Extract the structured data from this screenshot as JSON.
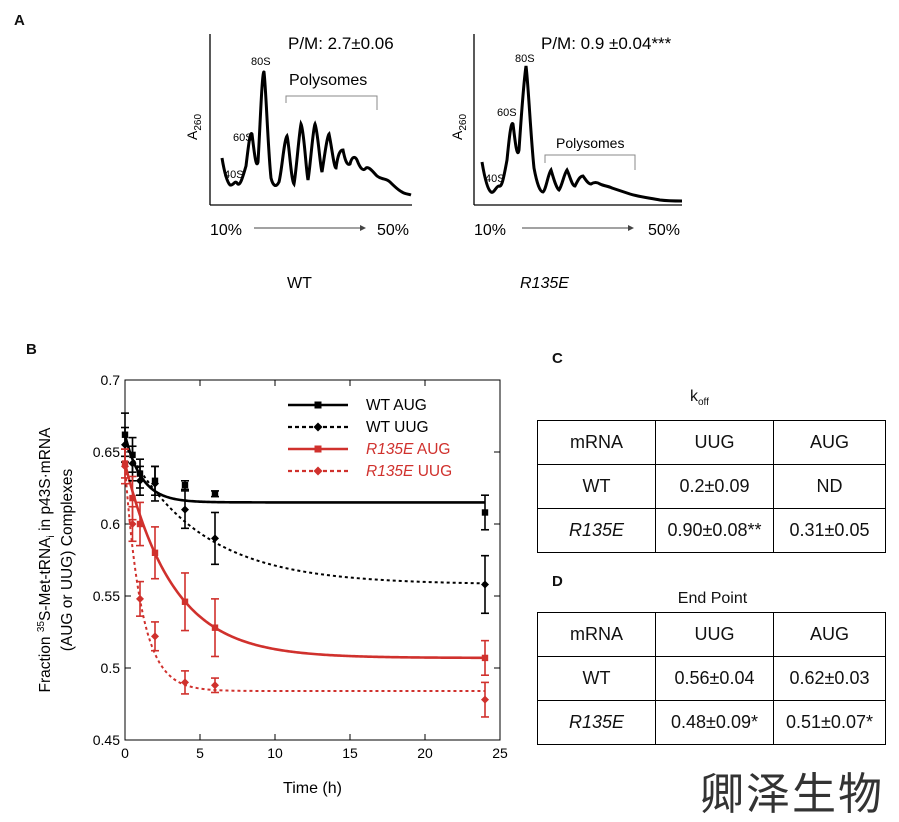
{
  "panels": {
    "a": "A",
    "b": "B",
    "c": "C",
    "d": "D"
  },
  "profiles": {
    "ylabel": "A",
    "ylabel_sub": "260",
    "x_start": "10%",
    "x_end": "50%",
    "items": [
      {
        "ratio": "P/M: 2.7±0.06",
        "peak_40s": "40S",
        "peak_60s": "60S",
        "peak_80s": "80S",
        "polysomes": "Polysomes",
        "caption": "WT"
      },
      {
        "ratio": "P/M: 0.9 ±0.04***",
        "peak_40s": "40S",
        "peak_60s": "60S",
        "peak_80s": "80S",
        "polysomes": "Polysomes",
        "caption": "R135E"
      }
    ]
  },
  "chart_data": {
    "type": "scatter",
    "title": "",
    "xlabel": "Time (h)",
    "ylabel_parts": {
      "line1_pre": "Fraction ",
      "sup": "35",
      "line1_mid": "S-Met-tRNA",
      "sub": "i",
      "line1_post": " in p43S·mRNA",
      "line2": "(AUG or UUG) Complexes"
    },
    "xlim": [
      0,
      25
    ],
    "ylim": [
      0.45,
      0.7
    ],
    "xticks": [
      0,
      5,
      10,
      15,
      20,
      25
    ],
    "yticks": [
      0.45,
      0.5,
      0.55,
      0.6,
      0.65,
      0.7
    ],
    "ytick_labels": [
      "0.45",
      "0.5",
      "0.55",
      "0.6",
      "0.65",
      "0.7"
    ],
    "legend_position": "top-right",
    "series": [
      {
        "name": "WT AUG",
        "name_strain": "WT",
        "name_codon": " AUG",
        "color": "#000000",
        "marker": "square",
        "dashed": false,
        "x": [
          0,
          0.5,
          1,
          2,
          4,
          6,
          24
        ],
        "y": [
          0.662,
          0.648,
          0.635,
          0.63,
          0.627,
          0.621,
          0.608
        ],
        "err": [
          0.015,
          0.012,
          0.01,
          0.01,
          0.003,
          0.002,
          0.012
        ],
        "fit": {
          "plateau": 0.615,
          "y0": 0.662,
          "k": 0.9
        }
      },
      {
        "name": "WT UUG",
        "name_strain": "WT",
        "name_codon": " UUG",
        "color": "#000000",
        "marker": "diamond",
        "dashed": true,
        "x": [
          0,
          0.5,
          1,
          2,
          4,
          6,
          24
        ],
        "y": [
          0.655,
          0.642,
          0.63,
          0.628,
          0.61,
          0.59,
          0.558
        ],
        "err": [
          0.012,
          0.012,
          0.01,
          0.012,
          0.013,
          0.018,
          0.02
        ],
        "fit": {
          "plateau": 0.558,
          "y0": 0.655,
          "k": 0.2
        }
      },
      {
        "name": "R135E AUG",
        "name_strain": "R135E",
        "name_codon": " AUG",
        "color": "#d0312d",
        "marker": "square",
        "dashed": false,
        "x": [
          0,
          0.5,
          1,
          2,
          4,
          6,
          24
        ],
        "y": [
          0.642,
          0.618,
          0.6,
          0.58,
          0.546,
          0.528,
          0.507
        ],
        "err": [
          0.01,
          0.015,
          0.015,
          0.018,
          0.02,
          0.02,
          0.012
        ],
        "fit": {
          "plateau": 0.507,
          "y0": 0.642,
          "k": 0.31
        }
      },
      {
        "name": "R135E UUG",
        "name_strain": "R135E",
        "name_codon": " UUG",
        "color": "#d0312d",
        "marker": "diamond",
        "dashed": true,
        "x": [
          0,
          0.5,
          1,
          2,
          4,
          6,
          24
        ],
        "y": [
          0.64,
          0.6,
          0.548,
          0.522,
          0.49,
          0.488,
          0.478
        ],
        "err": [
          0.012,
          0.012,
          0.012,
          0.01,
          0.008,
          0.005,
          0.012
        ],
        "fit": {
          "plateau": 0.484,
          "y0": 0.64,
          "k": 0.9
        }
      }
    ]
  },
  "table_c": {
    "title_main": "k",
    "title_sub": "off",
    "header": [
      "mRNA",
      "UUG",
      "AUG"
    ],
    "rows": [
      [
        "WT",
        "0.2±0.09",
        "ND"
      ],
      [
        "R135E",
        "0.90±0.08**",
        "0.31±0.05"
      ]
    ]
  },
  "table_d": {
    "title": "End Point",
    "header": [
      "mRNA",
      "UUG",
      "AUG"
    ],
    "rows": [
      [
        "WT",
        "0.56±0.04",
        "0.62±0.03"
      ],
      [
        "R135E",
        "0.48±0.09*",
        "0.51±0.07*"
      ]
    ]
  },
  "watermark": "卿泽生物"
}
